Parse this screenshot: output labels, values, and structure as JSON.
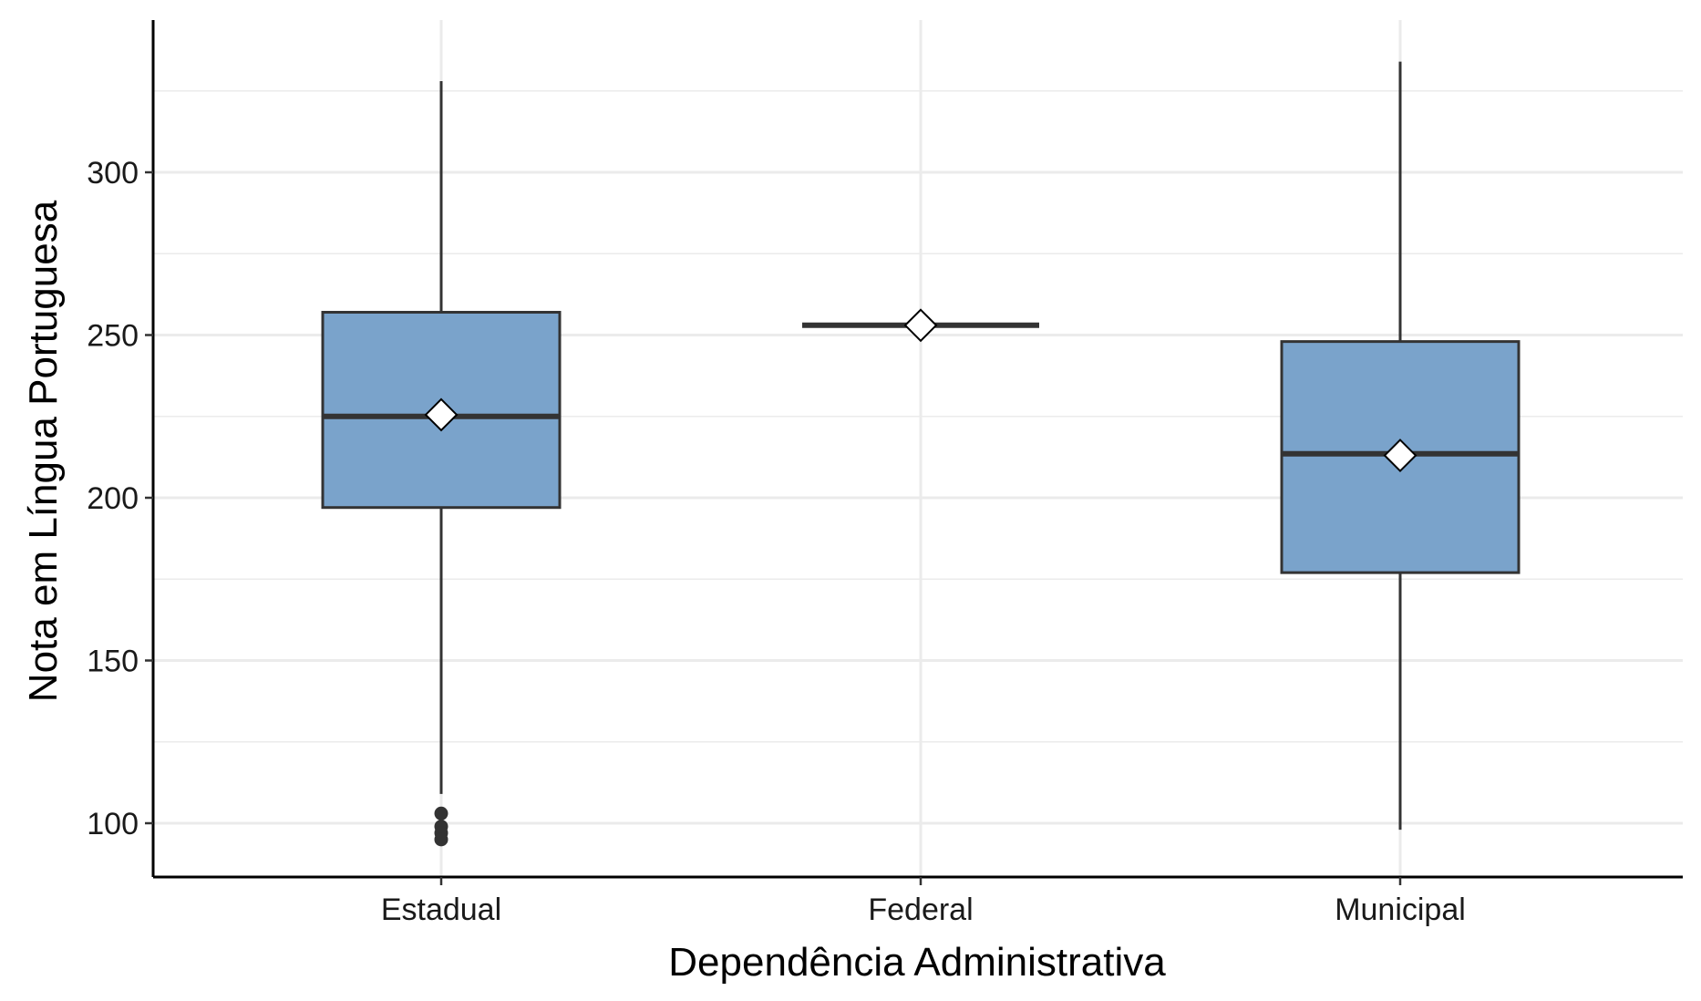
{
  "chart_data": {
    "type": "boxplot",
    "xlabel": "Dependência Administrativa",
    "ylabel": "Nota em Língua Portuguesa",
    "ylim": [
      82,
      328
    ],
    "yticks": [
      100,
      150,
      200,
      250,
      300
    ],
    "ytick_labels": [
      "100",
      "150",
      "200",
      "250",
      "300"
    ],
    "grid": true,
    "categories": [
      "Estadual",
      "Federal",
      "Municipal"
    ],
    "boxes": [
      {
        "category": "Estadual",
        "whisker_low": 109,
        "q1": 197,
        "median": 225,
        "q3": 257,
        "whisker_high": 328,
        "mean": 225.5,
        "outliers": [
          103,
          99,
          97,
          95
        ]
      },
      {
        "category": "Federal",
        "whisker_low": 253,
        "q1": 253,
        "median": 253,
        "q3": 253,
        "whisker_high": 253,
        "mean": 253,
        "outliers": []
      },
      {
        "category": "Municipal",
        "whisker_low": 98,
        "q1": 177,
        "median": 213.5,
        "q3": 248,
        "whisker_high": 334,
        "mean": 213,
        "outliers": []
      }
    ],
    "colors": {
      "box_fill": "#7aa3cb",
      "box_line": "#333333",
      "grid": "#ebebeb",
      "axis": "#000000",
      "mean_marker_fill": "#ffffff"
    }
  }
}
